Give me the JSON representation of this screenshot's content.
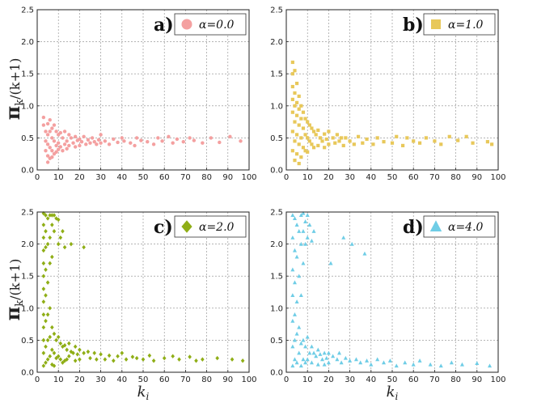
{
  "figure": {
    "ylabel_main": "π",
    "ylabel_sub": "k",
    "ylabel_rest": "/(k+1)",
    "xlabel_main": "k",
    "xlabel_sub": "i"
  },
  "chart_data": [
    {
      "type": "scatter",
      "panel": "a)",
      "legend": "α=0.0",
      "marker": "circle",
      "color": "#f4a0a0",
      "xlim": [
        0,
        100
      ],
      "ylim": [
        0,
        2.5
      ],
      "xticks": [
        0,
        10,
        20,
        30,
        40,
        50,
        60,
        70,
        80,
        90,
        100
      ],
      "yticks": [
        0.0,
        0.5,
        1.0,
        1.5,
        2.0,
        2.5
      ],
      "show_ylabel": true,
      "show_xlabel": false,
      "points": [
        [
          3,
          0.82
        ],
        [
          3,
          0.7
        ],
        [
          4,
          0.6
        ],
        [
          4,
          0.45
        ],
        [
          4,
          0.3
        ],
        [
          5,
          0.72
        ],
        [
          5,
          0.55
        ],
        [
          5,
          0.4
        ],
        [
          5,
          0.22
        ],
        [
          5,
          0.12
        ],
        [
          6,
          0.78
        ],
        [
          6,
          0.6
        ],
        [
          6,
          0.35
        ],
        [
          6,
          0.18
        ],
        [
          7,
          0.65
        ],
        [
          7,
          0.5
        ],
        [
          7,
          0.3
        ],
        [
          7,
          0.2
        ],
        [
          8,
          0.7
        ],
        [
          8,
          0.45
        ],
        [
          8,
          0.25
        ],
        [
          9,
          0.6
        ],
        [
          9,
          0.38
        ],
        [
          9,
          0.28
        ],
        [
          10,
          0.55
        ],
        [
          10,
          0.42
        ],
        [
          10,
          0.32
        ],
        [
          11,
          0.58
        ],
        [
          11,
          0.36
        ],
        [
          12,
          0.5
        ],
        [
          12,
          0.3
        ],
        [
          13,
          0.6
        ],
        [
          13,
          0.4
        ],
        [
          14,
          0.45
        ],
        [
          14,
          0.33
        ],
        [
          15,
          0.55
        ],
        [
          15,
          0.38
        ],
        [
          16,
          0.5
        ],
        [
          17,
          0.42
        ],
        [
          18,
          0.52
        ],
        [
          18,
          0.36
        ],
        [
          19,
          0.46
        ],
        [
          20,
          0.48
        ],
        [
          20,
          0.38
        ],
        [
          21,
          0.44
        ],
        [
          22,
          0.52
        ],
        [
          23,
          0.4
        ],
        [
          24,
          0.47
        ],
        [
          25,
          0.42
        ],
        [
          26,
          0.5
        ],
        [
          27,
          0.44
        ],
        [
          28,
          0.4
        ],
        [
          29,
          0.47
        ],
        [
          30,
          0.55
        ],
        [
          30,
          0.42
        ],
        [
          32,
          0.45
        ],
        [
          34,
          0.4
        ],
        [
          36,
          0.48
        ],
        [
          38,
          0.43
        ],
        [
          40,
          0.5
        ],
        [
          41,
          0.45
        ],
        [
          44,
          0.42
        ],
        [
          46,
          0.38
        ],
        [
          47,
          0.5
        ],
        [
          49,
          0.46
        ],
        [
          52,
          0.44
        ],
        [
          55,
          0.4
        ],
        [
          57,
          0.5
        ],
        [
          59,
          0.45
        ],
        [
          62,
          0.52
        ],
        [
          64,
          0.42
        ],
        [
          66,
          0.48
        ],
        [
          69,
          0.44
        ],
        [
          72,
          0.5
        ],
        [
          74,
          0.46
        ],
        [
          78,
          0.42
        ],
        [
          82,
          0.5
        ],
        [
          86,
          0.43
        ],
        [
          91,
          0.52
        ],
        [
          96,
          0.45
        ]
      ]
    },
    {
      "type": "scatter",
      "panel": "b)",
      "legend": "α=1.0",
      "marker": "square",
      "color": "#e8c85a",
      "xlim": [
        0,
        100
      ],
      "ylim": [
        0,
        2.5
      ],
      "xticks": [
        0,
        10,
        20,
        30,
        40,
        50,
        60,
        70,
        80,
        90,
        100
      ],
      "yticks": [
        0.0,
        0.5,
        1.0,
        1.5,
        2.0,
        2.5
      ],
      "show_ylabel": false,
      "show_xlabel": false,
      "points": [
        [
          3,
          1.68
        ],
        [
          3,
          1.5
        ],
        [
          3,
          1.3
        ],
        [
          3,
          1.1
        ],
        [
          3,
          0.9
        ],
        [
          3,
          0.6
        ],
        [
          3,
          0.3
        ],
        [
          4,
          1.55
        ],
        [
          4,
          1.2
        ],
        [
          4,
          1.0
        ],
        [
          4,
          0.75
        ],
        [
          4,
          0.45
        ],
        [
          4,
          0.15
        ],
        [
          5,
          1.35
        ],
        [
          5,
          1.05
        ],
        [
          5,
          0.85
        ],
        [
          5,
          0.55
        ],
        [
          5,
          0.25
        ],
        [
          6,
          1.15
        ],
        [
          6,
          0.95
        ],
        [
          6,
          0.7
        ],
        [
          6,
          0.4
        ],
        [
          6,
          0.1
        ],
        [
          7,
          1.0
        ],
        [
          7,
          0.8
        ],
        [
          7,
          0.5
        ],
        [
          7,
          0.2
        ],
        [
          8,
          0.9
        ],
        [
          8,
          0.65
        ],
        [
          8,
          0.35
        ],
        [
          9,
          0.8
        ],
        [
          9,
          0.55
        ],
        [
          9,
          0.3
        ],
        [
          10,
          0.75
        ],
        [
          10,
          0.5
        ],
        [
          10,
          0.28
        ],
        [
          11,
          0.7
        ],
        [
          11,
          0.45
        ],
        [
          12,
          0.65
        ],
        [
          12,
          0.4
        ],
        [
          13,
          0.6
        ],
        [
          13,
          0.35
        ],
        [
          14,
          0.55
        ],
        [
          15,
          0.62
        ],
        [
          15,
          0.38
        ],
        [
          16,
          0.5
        ],
        [
          17,
          0.45
        ],
        [
          18,
          0.56
        ],
        [
          18,
          0.35
        ],
        [
          19,
          0.48
        ],
        [
          20,
          0.6
        ],
        [
          20,
          0.4
        ],
        [
          22,
          0.5
        ],
        [
          23,
          0.42
        ],
        [
          24,
          0.55
        ],
        [
          25,
          0.45
        ],
        [
          26,
          0.5
        ],
        [
          27,
          0.38
        ],
        [
          28,
          0.5
        ],
        [
          30,
          0.45
        ],
        [
          32,
          0.4
        ],
        [
          34,
          0.52
        ],
        [
          36,
          0.42
        ],
        [
          38,
          0.48
        ],
        [
          41,
          0.4
        ],
        [
          43,
          0.5
        ],
        [
          46,
          0.44
        ],
        [
          50,
          0.42
        ],
        [
          52,
          0.52
        ],
        [
          55,
          0.38
        ],
        [
          57,
          0.5
        ],
        [
          60,
          0.45
        ],
        [
          63,
          0.42
        ],
        [
          66,
          0.5
        ],
        [
          70,
          0.45
        ],
        [
          73,
          0.4
        ],
        [
          77,
          0.52
        ],
        [
          81,
          0.46
        ],
        [
          85,
          0.52
        ],
        [
          88,
          0.42
        ],
        [
          95,
          0.44
        ],
        [
          97,
          0.4
        ]
      ]
    },
    {
      "type": "scatter",
      "panel": "c)",
      "legend": "α=2.0",
      "marker": "diamond",
      "color": "#8fae16",
      "xlim": [
        0,
        100
      ],
      "ylim": [
        0,
        2.5
      ],
      "xticks": [
        0,
        10,
        20,
        30,
        40,
        50,
        60,
        70,
        80,
        90,
        100
      ],
      "yticks": [
        0.0,
        0.5,
        1.0,
        1.5,
        2.0,
        2.5
      ],
      "show_ylabel": true,
      "show_xlabel": true,
      "points": [
        [
          3,
          2.48
        ],
        [
          3,
          2.3
        ],
        [
          3,
          2.1
        ],
        [
          3,
          1.9
        ],
        [
          3,
          1.7
        ],
        [
          3,
          1.5
        ],
        [
          3,
          1.3
        ],
        [
          3,
          1.1
        ],
        [
          3,
          0.9
        ],
        [
          3,
          0.7
        ],
        [
          3,
          0.5
        ],
        [
          3,
          0.3
        ],
        [
          3,
          0.1
        ],
        [
          4,
          2.45
        ],
        [
          4,
          2.2
        ],
        [
          4,
          1.95
        ],
        [
          4,
          1.6
        ],
        [
          4,
          1.2
        ],
        [
          4,
          0.8
        ],
        [
          4,
          0.4
        ],
        [
          4,
          0.15
        ],
        [
          5,
          2.4
        ],
        [
          5,
          2.0
        ],
        [
          5,
          1.4
        ],
        [
          5,
          0.9
        ],
        [
          5,
          0.5
        ],
        [
          5,
          0.2
        ],
        [
          6,
          2.45
        ],
        [
          6,
          2.1
        ],
        [
          6,
          1.7
        ],
        [
          6,
          1.0
        ],
        [
          6,
          0.55
        ],
        [
          6,
          0.25
        ],
        [
          7,
          2.45
        ],
        [
          7,
          2.3
        ],
        [
          7,
          1.8
        ],
        [
          7,
          0.7
        ],
        [
          7,
          0.35
        ],
        [
          7,
          0.12
        ],
        [
          8,
          2.45
        ],
        [
          8,
          2.2
        ],
        [
          8,
          0.6
        ],
        [
          8,
          0.3
        ],
        [
          8,
          0.1
        ],
        [
          9,
          2.4
        ],
        [
          9,
          0.5
        ],
        [
          9,
          0.22
        ],
        [
          10,
          2.38
        ],
        [
          10,
          2.0
        ],
        [
          10,
          0.55
        ],
        [
          10,
          0.25
        ],
        [
          11,
          2.1
        ],
        [
          11,
          0.45
        ],
        [
          11,
          0.2
        ],
        [
          12,
          2.2
        ],
        [
          12,
          0.4
        ],
        [
          12,
          0.15
        ],
        [
          13,
          1.95
        ],
        [
          13,
          0.42
        ],
        [
          13,
          0.18
        ],
        [
          14,
          0.35
        ],
        [
          14,
          0.2
        ],
        [
          15,
          0.45
        ],
        [
          15,
          0.25
        ],
        [
          16,
          2.0
        ],
        [
          16,
          0.32
        ],
        [
          17,
          0.3
        ],
        [
          18,
          0.4
        ],
        [
          18,
          0.18
        ],
        [
          19,
          0.28
        ],
        [
          20,
          0.35
        ],
        [
          20,
          0.2
        ],
        [
          22,
          1.95
        ],
        [
          22,
          0.3
        ],
        [
          24,
          0.32
        ],
        [
          25,
          0.22
        ],
        [
          27,
          0.3
        ],
        [
          28,
          0.2
        ],
        [
          30,
          0.28
        ],
        [
          32,
          0.2
        ],
        [
          34,
          0.26
        ],
        [
          36,
          0.18
        ],
        [
          38,
          0.25
        ],
        [
          40,
          0.3
        ],
        [
          42,
          0.2
        ],
        [
          45,
          0.24
        ],
        [
          47,
          0.22
        ],
        [
          50,
          0.2
        ],
        [
          53,
          0.26
        ],
        [
          55,
          0.18
        ],
        [
          60,
          0.22
        ],
        [
          64,
          0.25
        ],
        [
          67,
          0.2
        ],
        [
          72,
          0.24
        ],
        [
          75,
          0.18
        ],
        [
          78,
          0.2
        ],
        [
          85,
          0.22
        ],
        [
          92,
          0.2
        ],
        [
          97,
          0.18
        ]
      ]
    },
    {
      "type": "scatter",
      "panel": "d)",
      "legend": "α=4.0",
      "marker": "triangle",
      "color": "#6fcde6",
      "xlim": [
        0,
        100
      ],
      "ylim": [
        0,
        2.5
      ],
      "xticks": [
        0,
        10,
        20,
        30,
        40,
        50,
        60,
        70,
        80,
        90,
        100
      ],
      "yticks": [
        0.0,
        0.5,
        1.0,
        1.5,
        2.0,
        2.5
      ],
      "show_ylabel": false,
      "show_xlabel": true,
      "points": [
        [
          3,
          2.45
        ],
        [
          3,
          2.1
        ],
        [
          3,
          1.6
        ],
        [
          3,
          1.2
        ],
        [
          3,
          0.8
        ],
        [
          3,
          0.4
        ],
        [
          3,
          0.1
        ],
        [
          4,
          2.4
        ],
        [
          4,
          1.9
        ],
        [
          4,
          1.4
        ],
        [
          4,
          0.9
        ],
        [
          4,
          0.5
        ],
        [
          4,
          0.2
        ],
        [
          5,
          2.3
        ],
        [
          5,
          1.8
        ],
        [
          5,
          1.1
        ],
        [
          5,
          0.6
        ],
        [
          5,
          0.15
        ],
        [
          6,
          2.2
        ],
        [
          6,
          1.5
        ],
        [
          6,
          0.7
        ],
        [
          6,
          0.3
        ],
        [
          7,
          2.45
        ],
        [
          7,
          2.0
        ],
        [
          7,
          1.2
        ],
        [
          7,
          0.45
        ],
        [
          7,
          0.1
        ],
        [
          8,
          2.48
        ],
        [
          8,
          2.2
        ],
        [
          8,
          1.7
        ],
        [
          8,
          0.5
        ],
        [
          8,
          0.2
        ],
        [
          9,
          2.35
        ],
        [
          9,
          2.0
        ],
        [
          9,
          0.4
        ],
        [
          9,
          0.15
        ],
        [
          10,
          2.45
        ],
        [
          10,
          2.1
        ],
        [
          10,
          0.55
        ],
        [
          10,
          0.2
        ],
        [
          11,
          2.3
        ],
        [
          11,
          0.3
        ],
        [
          12,
          2.05
        ],
        [
          12,
          0.4
        ],
        [
          12,
          0.15
        ],
        [
          13,
          2.2
        ],
        [
          13,
          0.3
        ],
        [
          14,
          0.25
        ],
        [
          15,
          0.35
        ],
        [
          15,
          0.12
        ],
        [
          16,
          0.28
        ],
        [
          17,
          0.2
        ],
        [
          18,
          0.3
        ],
        [
          18,
          0.12
        ],
        [
          19,
          0.22
        ],
        [
          20,
          0.3
        ],
        [
          20,
          0.15
        ],
        [
          21,
          1.7
        ],
        [
          22,
          0.25
        ],
        [
          24,
          0.2
        ],
        [
          25,
          0.3
        ],
        [
          26,
          0.15
        ],
        [
          27,
          2.1
        ],
        [
          28,
          0.22
        ],
        [
          30,
          0.18
        ],
        [
          31,
          2.0
        ],
        [
          33,
          0.2
        ],
        [
          35,
          0.15
        ],
        [
          37,
          1.85
        ],
        [
          38,
          0.18
        ],
        [
          40,
          0.12
        ],
        [
          43,
          0.2
        ],
        [
          46,
          0.15
        ],
        [
          49,
          0.18
        ],
        [
          52,
          0.1
        ],
        [
          56,
          0.15
        ],
        [
          60,
          0.12
        ],
        [
          63,
          0.18
        ],
        [
          68,
          0.12
        ],
        [
          73,
          0.1
        ],
        [
          78,
          0.15
        ],
        [
          83,
          0.12
        ],
        [
          90,
          0.14
        ],
        [
          96,
          0.1
        ]
      ]
    }
  ]
}
